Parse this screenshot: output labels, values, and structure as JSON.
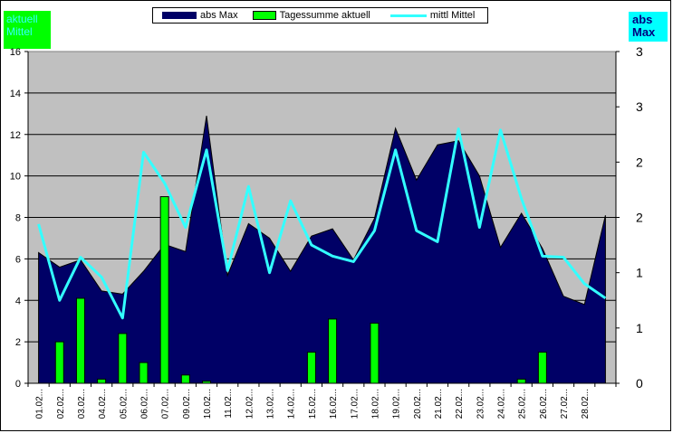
{
  "left_badge": {
    "line1": "aktuell",
    "line2": "Mittel"
  },
  "right_badge": {
    "line1": "abs",
    "line2": "Max"
  },
  "colors": {
    "area": "#000066",
    "bar": "#00ff00",
    "line": "#33ffff",
    "plot_bg": "#c0c0c0",
    "badge_left_bg": "#00ff00",
    "badge_right_bg": "#00ffff"
  },
  "chart_data": {
    "type": "area",
    "categories": [
      "01.02",
      "02.02",
      "03.02",
      "04.02",
      "05.02",
      "06.02",
      "07.02",
      "09.02",
      "10.02",
      "11.02",
      "12.02",
      "13.02",
      "14.02",
      "15.02",
      "16.02",
      "17.02",
      "18.02",
      "19.02",
      "20.02",
      "21.02",
      "22.02",
      "23.02",
      "24.02",
      "25.02",
      "26.02",
      "27.02",
      "28.02",
      ""
    ],
    "tick_labels": [
      "01.02...",
      "02.02...",
      "03.02...",
      "04.02...",
      "05.02...",
      "06.02...",
      "07.02...",
      "09.02...",
      "10.02...",
      "11.02...",
      "12.02...",
      "13.02...",
      "14.02...",
      "15.02...",
      "16.02...",
      "17.02...",
      "18.02...",
      "19.02...",
      "20.02...",
      "21.02...",
      "22.02...",
      "23.02...",
      "24.02...",
      "25.02...",
      "26.02...",
      "27.02...",
      "28.02...",
      ""
    ],
    "series": [
      {
        "name": "abs Max",
        "type": "area",
        "axis": "left",
        "values": [
          6.3,
          5.6,
          5.95,
          4.45,
          4.3,
          5.4,
          6.7,
          6.35,
          12.9,
          5.2,
          7.7,
          7.0,
          5.4,
          7.1,
          7.45,
          5.95,
          7.95,
          12.3,
          9.8,
          11.5,
          11.7,
          10.0,
          6.55,
          8.2,
          6.5,
          4.2,
          3.8,
          8.1
        ]
      },
      {
        "name": "Tagessumme aktuell",
        "type": "bar",
        "axis": "left",
        "values": [
          0,
          2.0,
          4.1,
          0.2,
          2.4,
          1.0,
          9.0,
          0.4,
          0.1,
          0,
          0,
          0,
          0,
          1.5,
          3.1,
          0,
          2.9,
          0,
          0,
          0,
          0,
          0,
          0,
          0.2,
          1.5,
          0,
          0,
          0
        ]
      },
      {
        "name": "mittl Mittel",
        "type": "line",
        "axis": "right",
        "values": [
          1.44,
          0.75,
          1.14,
          0.96,
          0.59,
          2.09,
          1.81,
          1.41,
          2.11,
          1.02,
          1.78,
          1.0,
          1.65,
          1.25,
          1.15,
          1.1,
          1.38,
          2.11,
          1.38,
          1.28,
          2.3,
          1.41,
          2.29,
          1.67,
          1.15,
          1.14,
          0.9,
          0.77
        ]
      }
    ],
    "y_left": {
      "ylim": [
        0,
        16
      ],
      "ticks": [
        "0",
        "2",
        "4",
        "6",
        "8",
        "10",
        "12",
        "14",
        "16"
      ]
    },
    "y_right": {
      "ylim": [
        0,
        3
      ],
      "ticks": [
        "0",
        "1",
        "1",
        "2",
        "2",
        "3"
      ],
      "tick_values": [
        0,
        0.5,
        1.0,
        1.5,
        2.0,
        2.5,
        3.0
      ],
      "tick_labels_all": [
        "0",
        "1",
        "1",
        "2",
        "2",
        "3",
        "3"
      ]
    },
    "grid": true,
    "legend": "top"
  }
}
